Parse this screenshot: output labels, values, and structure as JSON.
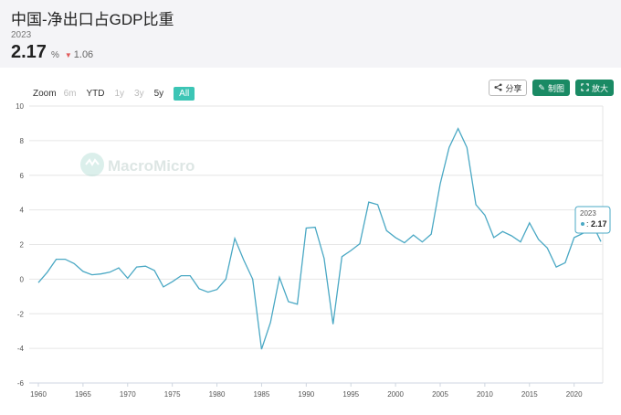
{
  "header": {
    "title": "中国-净出口占GDP比重",
    "year": "2023",
    "value": "2.17",
    "unit": "%",
    "change": "1.06"
  },
  "toolbar": {
    "zoom_label": "Zoom",
    "ranges": [
      "6m",
      "YTD",
      "1y",
      "3y",
      "5y",
      "All"
    ],
    "share_label": "分享",
    "draw_label": "制图",
    "enlarge_label": "放大"
  },
  "watermark": "MacroMicro",
  "tooltip": {
    "year": "2023",
    "value": "2.17"
  },
  "colors": {
    "line": "#4aa8c4",
    "accent": "#1a8a64",
    "active_range": "#3cc5b5",
    "down": "#e05a5a"
  },
  "chart_data": {
    "type": "line",
    "title": "",
    "xlabel": "",
    "ylabel": "",
    "xlim": [
      1960,
      2023
    ],
    "ylim": [
      -6,
      10
    ],
    "yticks": [
      -6,
      -4,
      -2,
      0,
      2,
      4,
      6,
      8,
      10
    ],
    "xticks": [
      1960,
      1965,
      1970,
      1975,
      1980,
      1985,
      1990,
      1995,
      2000,
      2005,
      2010,
      2015,
      2020
    ],
    "grid": true,
    "series": [
      {
        "x": [
          1960,
          1961,
          1962,
          1963,
          1964,
          1965,
          1966,
          1967,
          1968,
          1969,
          1970,
          1971,
          1972,
          1973,
          1974,
          1975,
          1976,
          1977,
          1978,
          1979,
          1980,
          1981,
          1982,
          1983,
          1984,
          1985,
          1986,
          1987,
          1988,
          1989,
          1990,
          1991,
          1992,
          1993,
          1994,
          1995,
          1996,
          1997,
          1998,
          1999,
          2000,
          2001,
          2002,
          2003,
          2004,
          2005,
          2006,
          2007,
          2008,
          2009,
          2010,
          2011,
          2012,
          2013,
          2014,
          2015,
          2016,
          2017,
          2018,
          2019,
          2020,
          2021,
          2022,
          2023
        ],
        "values": [
          -0.2,
          0.4,
          1.15,
          1.15,
          0.9,
          0.45,
          0.25,
          0.3,
          0.4,
          0.65,
          0.05,
          0.7,
          0.75,
          0.5,
          -0.45,
          -0.15,
          0.2,
          0.2,
          -0.55,
          -0.75,
          -0.6,
          0.0,
          2.35,
          1.1,
          0.0,
          -4.05,
          -2.5,
          0.1,
          -1.3,
          -1.45,
          2.95,
          3.0,
          1.2,
          -2.6,
          1.3,
          1.65,
          2.05,
          4.45,
          4.3,
          2.8,
          2.4,
          2.1,
          2.55,
          2.15,
          2.6,
          5.5,
          7.6,
          8.7,
          7.6,
          4.3,
          3.7,
          2.4,
          2.75,
          2.5,
          2.15,
          3.25,
          2.3,
          1.8,
          0.7,
          0.95,
          2.4,
          2.65,
          3.25,
          2.17
        ]
      }
    ]
  }
}
